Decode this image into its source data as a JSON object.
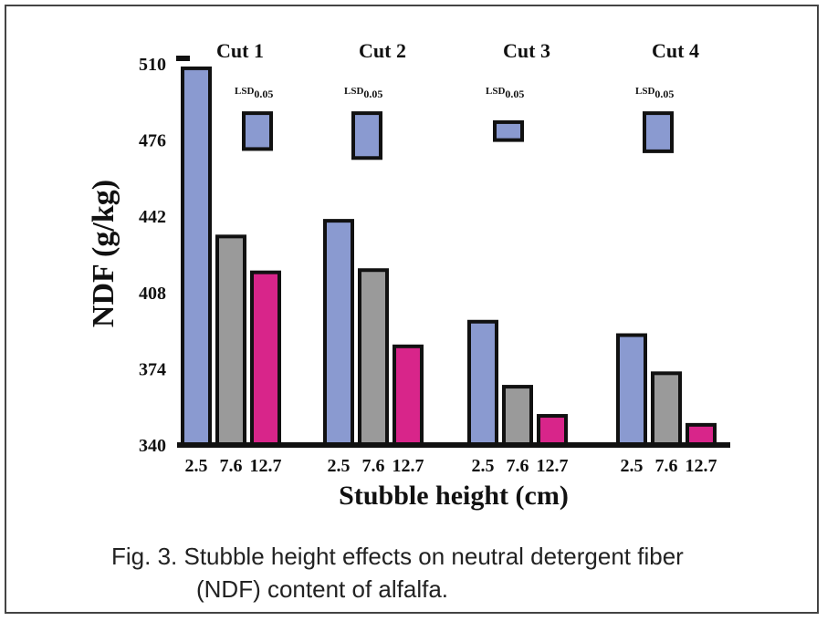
{
  "chart_data": {
    "type": "bar",
    "ylabel": "NDF (g/kg)",
    "xlabel": "Stubble height (cm)",
    "ylim": [
      340,
      510
    ],
    "yticks": [
      340,
      374,
      408,
      442,
      476,
      510
    ],
    "group_labels": [
      "Cut 1",
      "Cut 2",
      "Cut 3",
      "Cut 4"
    ],
    "categories": [
      "2.5",
      "7.6",
      "12.7"
    ],
    "series": [
      {
        "values": [
          508,
          433,
          417
        ]
      },
      {
        "values": [
          440,
          418,
          384
        ]
      },
      {
        "values": [
          395,
          366,
          353
        ]
      },
      {
        "values": [
          389,
          372,
          349
        ]
      }
    ],
    "lsd_label": "LSD",
    "lsd_subscript": "0.05",
    "lsd_values": [
      16,
      20,
      8,
      17
    ],
    "colors": {
      "2.5": "#8a9ad0",
      "7.6": "#9a9a9a",
      "12.7": "#d8258a"
    }
  },
  "caption": {
    "line1": "Fig. 3.  Stubble height effects on neutral detergent fiber",
    "line2": "(NDF) content of alfalfa."
  }
}
